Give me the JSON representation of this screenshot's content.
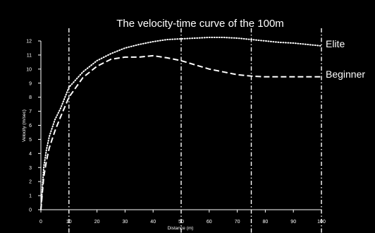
{
  "chart_data": {
    "type": "line",
    "title": "The velocity-time curve of the 100m",
    "xlabel": "Distance (m)",
    "ylabel": "Velocity (m/sec)",
    "xlim": [
      0,
      100
    ],
    "ylim": [
      0,
      12
    ],
    "x_ticks": [
      "0",
      "10",
      "20",
      "30",
      "40",
      "50",
      "60",
      "70",
      "80",
      "90",
      "100"
    ],
    "y_ticks": [
      "0",
      "1",
      "2",
      "3",
      "4",
      "5",
      "6",
      "7",
      "8",
      "9",
      "10",
      "11",
      "12"
    ],
    "reference_lines_x": [
      10,
      50,
      75,
      100
    ],
    "grid": false,
    "legend": "labels at right end of lines",
    "colors": {
      "background": "#000000",
      "foreground": "#ffffff"
    },
    "series": [
      {
        "name": "Elite",
        "style": "dotted",
        "x": [
          0,
          1,
          2,
          3,
          5,
          7,
          10,
          15,
          20,
          25,
          30,
          35,
          40,
          45,
          50,
          55,
          60,
          65,
          70,
          75,
          80,
          85,
          90,
          95,
          100
        ],
        "y": [
          0,
          3.0,
          4.3,
          5.2,
          6.4,
          7.2,
          8.7,
          9.8,
          10.6,
          11.1,
          11.5,
          11.75,
          11.95,
          12.1,
          12.15,
          12.2,
          12.25,
          12.25,
          12.2,
          12.1,
          12.0,
          11.9,
          11.85,
          11.75,
          11.65
        ]
      },
      {
        "name": "Beginner",
        "style": "dashed",
        "x": [
          0,
          1,
          2,
          3,
          5,
          7,
          10,
          15,
          20,
          25,
          30,
          35,
          40,
          45,
          50,
          55,
          60,
          65,
          70,
          75,
          80,
          85,
          90,
          95,
          100
        ],
        "y": [
          0,
          2.3,
          3.5,
          4.4,
          5.6,
          6.6,
          8.0,
          9.4,
          10.2,
          10.7,
          10.85,
          10.85,
          10.95,
          10.8,
          10.6,
          10.3,
          10.0,
          9.8,
          9.6,
          9.5,
          9.45,
          9.45,
          9.45,
          9.45,
          9.45
        ]
      }
    ]
  }
}
